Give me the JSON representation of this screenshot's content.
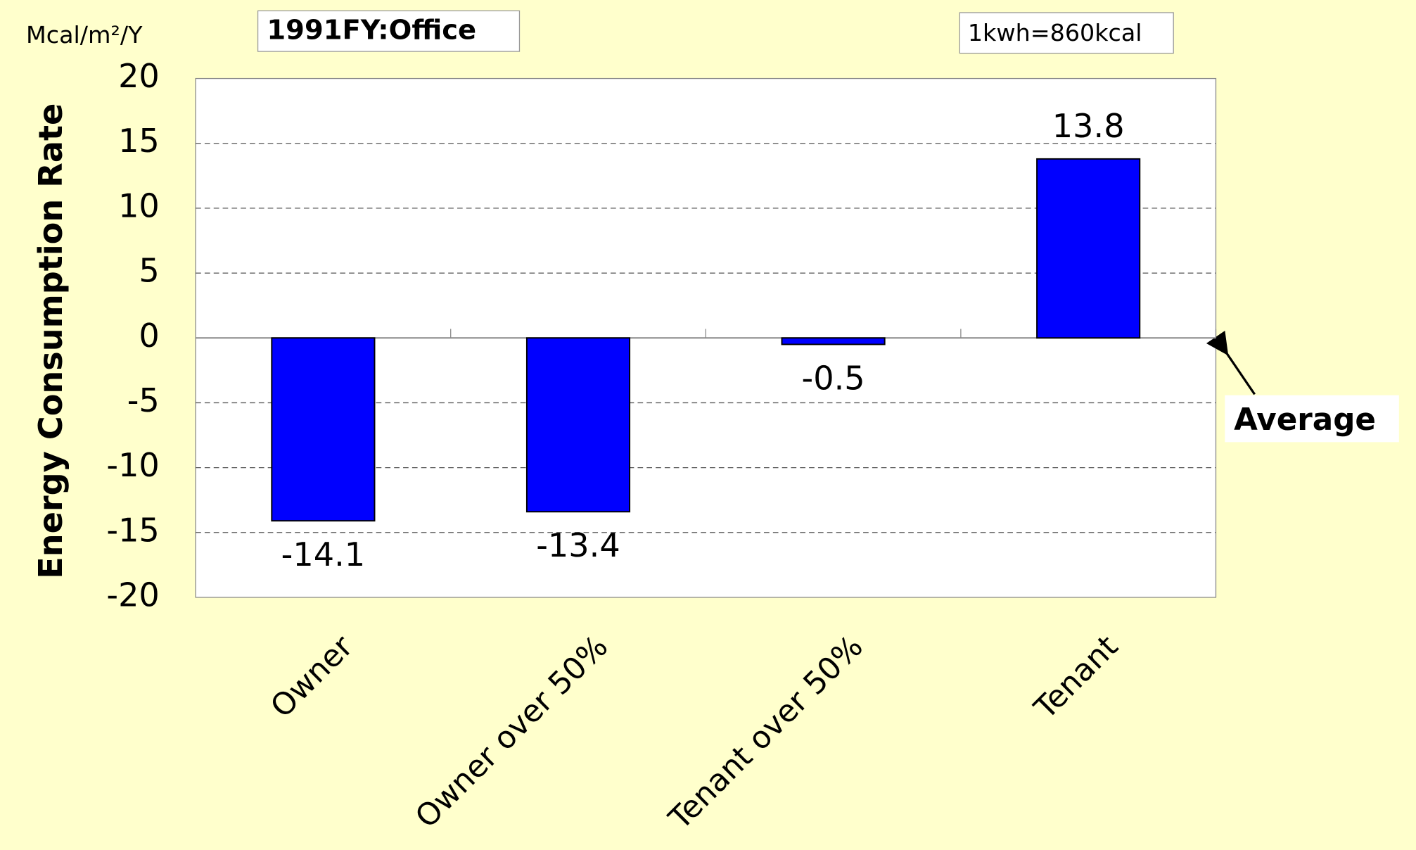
{
  "chart_data": {
    "type": "bar",
    "ylabel": "Energy Consumption Rate",
    "unit": "Mcal/m²/Y",
    "annotations": [
      "1991FY:Office",
      "1kwh=860kcal",
      "Average"
    ],
    "categories": [
      "Owner",
      "Owner over 50%",
      "Tenant over 50%",
      "Tenant"
    ],
    "values": [
      -14.1,
      -13.4,
      -0.5,
      13.8
    ],
    "color": "#0000ff",
    "ylim": [
      -20,
      20
    ],
    "yticks": [
      -20,
      -15,
      -10,
      -5,
      0,
      5,
      10,
      15,
      20
    ],
    "grid": true
  }
}
